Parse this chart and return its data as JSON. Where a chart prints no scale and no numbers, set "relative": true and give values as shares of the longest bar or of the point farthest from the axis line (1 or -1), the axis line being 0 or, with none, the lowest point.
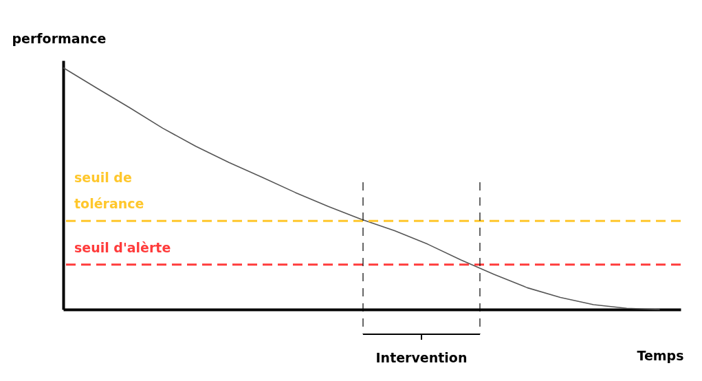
{
  "chart_data": {
    "type": "line",
    "relative": true,
    "xlabel": "Temps",
    "ylabel": "performance",
    "categories": [
      null,
      null,
      null,
      null,
      null,
      null,
      null,
      null,
      null,
      null,
      null,
      null,
      null,
      null,
      null,
      null,
      null,
      null,
      null
    ],
    "series": [
      {
        "color": "#555555",
        "values": [
          1,
          0.917,
          0.835,
          0.75,
          0.675,
          0.608,
          0.547,
          0.484,
          0.426,
          0.373,
          0.326,
          0.27,
          0.205,
          0.145,
          0.09,
          0.05,
          0.02,
          0.005,
          0
        ]
      }
    ],
    "grid": false,
    "ref_lines": [
      {
        "axis": "y",
        "value": 0.366,
        "label": "seuil de tolérance",
        "color": "#ffc72c",
        "line_style": "dashed"
      },
      {
        "axis": "y",
        "value": 0.186,
        "label": "seuil d'alèrte",
        "color": "#ff3b3b",
        "line_style": "dashed"
      }
    ],
    "annotations": [
      "Intervention"
    ]
  }
}
